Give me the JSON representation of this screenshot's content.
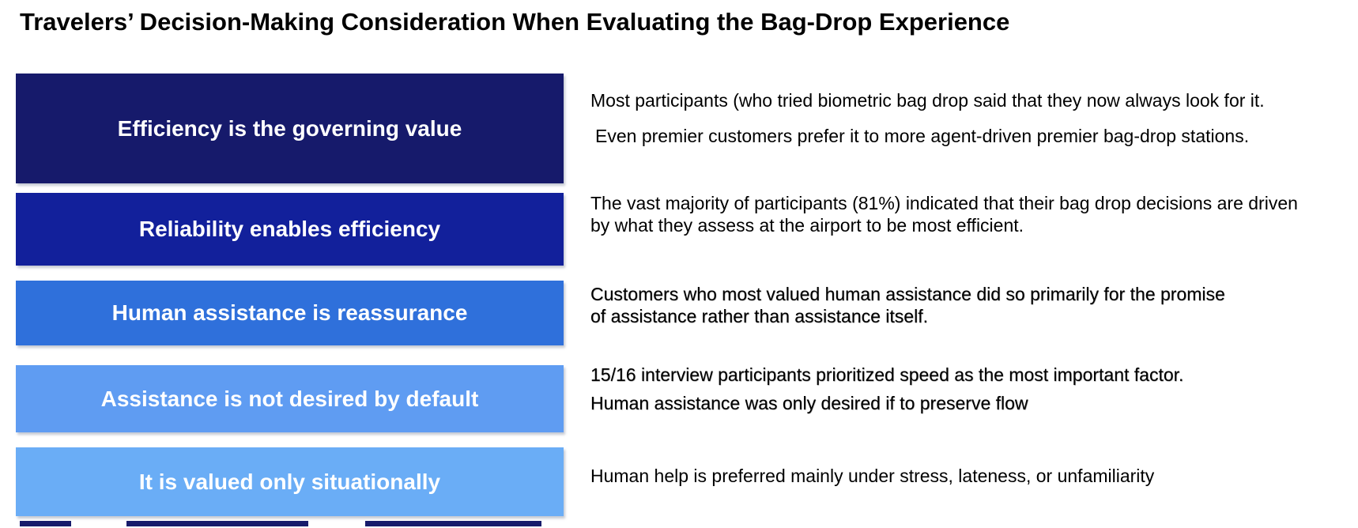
{
  "title": "Travelers’ Decision-Making Consideration When Evaluating the Bag-Drop Experience",
  "colors": {
    "title_text": "#000000",
    "box_label_text": "#ffffff",
    "description_text": "#000000",
    "bottom_cropped_box": "#171B6B"
  },
  "rows": [
    {
      "label": "Efficiency is the governing value",
      "box_color": "#161A6B",
      "paragraphs": [
        "Most participants (who tried biometric bag drop said that they now always look for it.",
        "Even premier customers prefer it to more agent-driven premier bag-drop stations."
      ]
    },
    {
      "label": "Reliability enables efficiency",
      "box_color": "#12209B",
      "paragraphs": [
        "The vast majority of participants (81%) indicated that their bag drop decisions are driven by what they assess at the airport to be most efficient."
      ]
    },
    {
      "label": "Human assistance is reassurance",
      "box_color": "#2F70DB",
      "paragraphs": [
        "Customers who most valued human assistance did so primarily for the promise of assistance rather than assistance itself."
      ]
    },
    {
      "label": "Assistance is not desired by default",
      "box_color": "#5F9CF2",
      "paragraphs": [
        "15/16 interview participants prioritized speed as the most important factor.",
        "Human assistance was only desired if to preserve flow"
      ]
    },
    {
      "label": "It is valued only situationally",
      "box_color": "#6AADF6",
      "paragraphs": [
        "Human help is preferred mainly under stress, lateness, or unfamiliarity"
      ]
    }
  ]
}
